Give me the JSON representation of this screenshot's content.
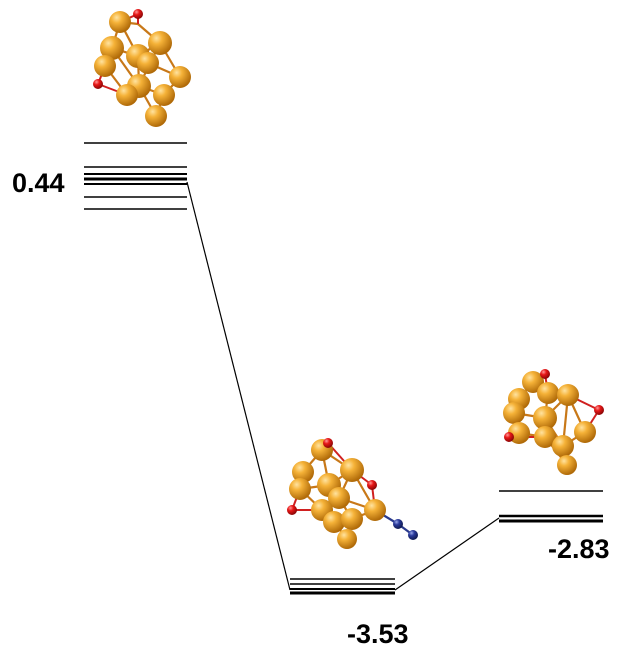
{
  "diagram": {
    "type": "energy-level-diagram",
    "states": [
      {
        "id": "initial",
        "label": "0.44"
      },
      {
        "id": "adsorbed",
        "label": "-3.53"
      },
      {
        "id": "final",
        "label": "-2.83"
      }
    ],
    "colors": {
      "gold_atom": "#f0a020",
      "oxygen_atom": "#e81818",
      "nitrogen_atom": "#2a3a8c",
      "bond": "#c87818",
      "line": "#000000"
    }
  }
}
